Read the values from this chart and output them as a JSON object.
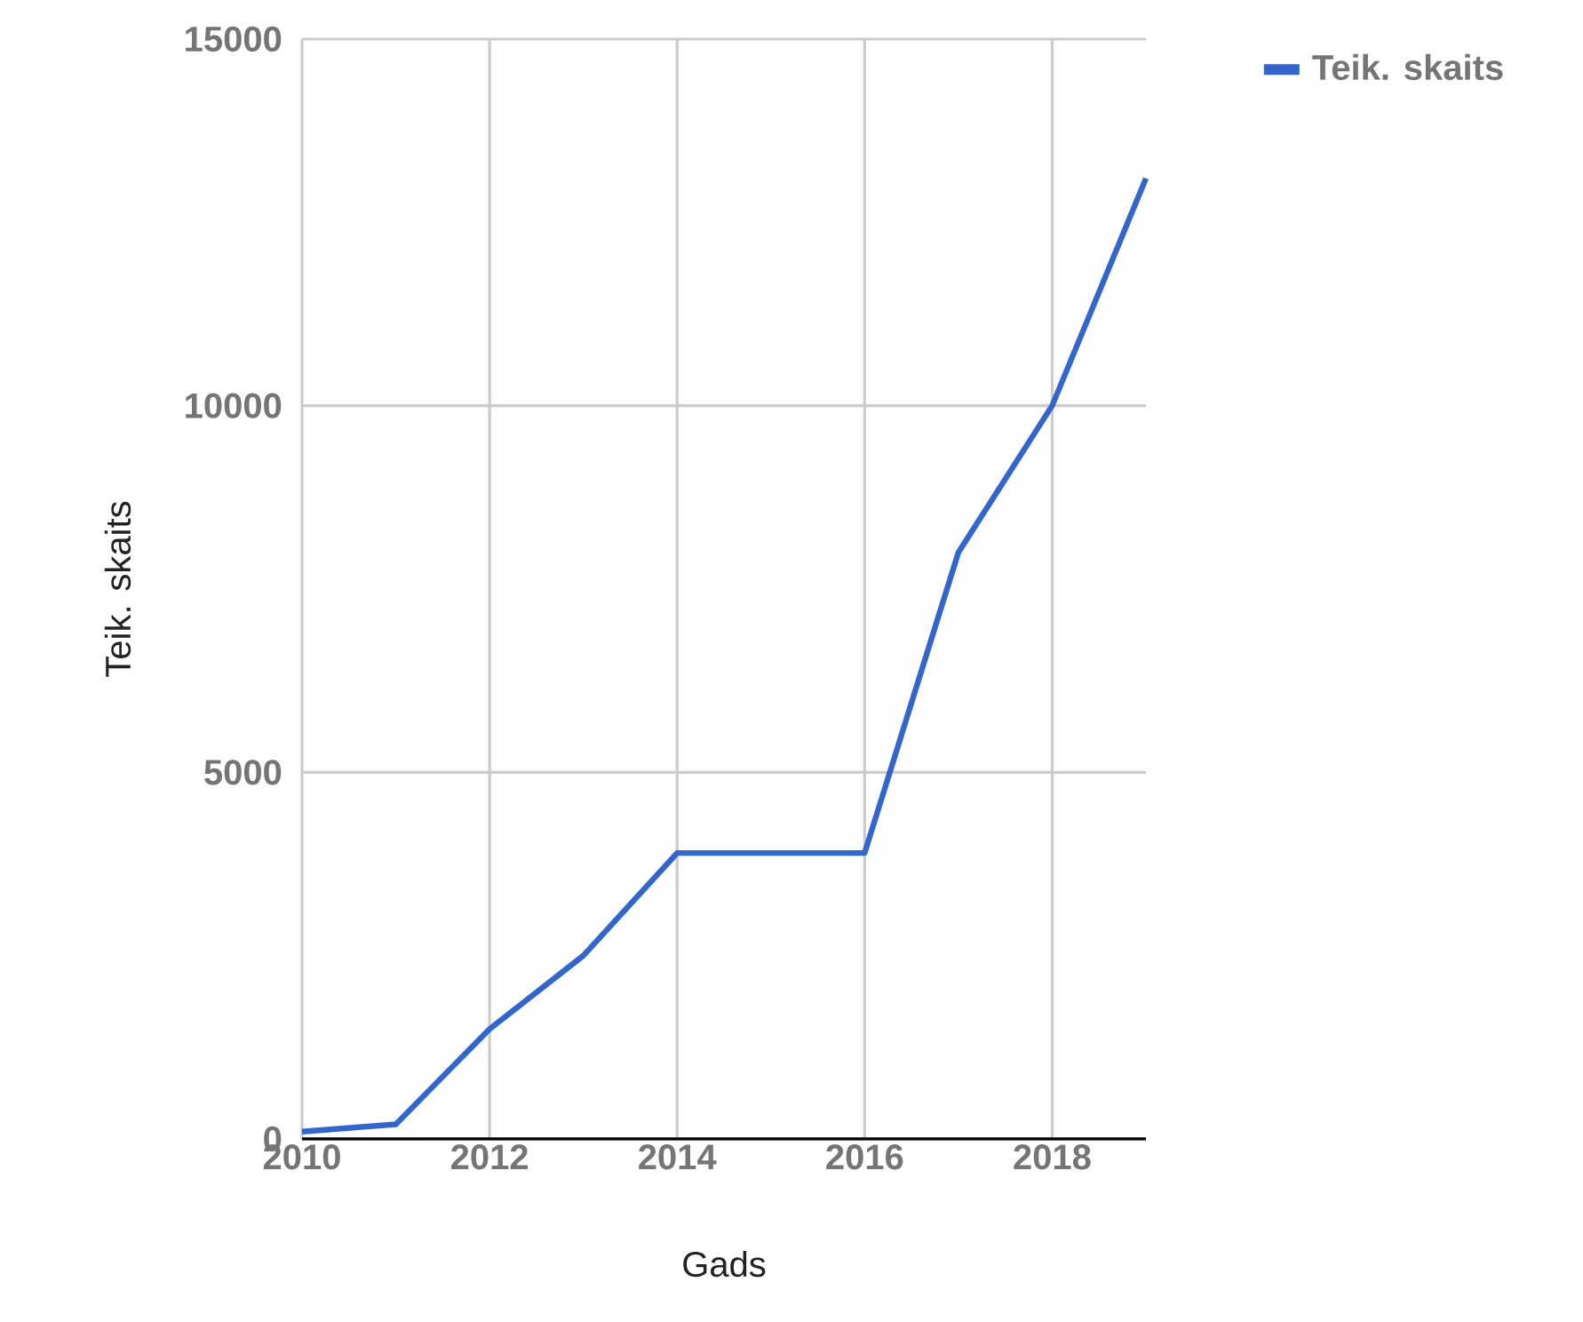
{
  "chart_data": {
    "type": "line",
    "xlabel": "Gads",
    "ylabel": "Teik. skaits",
    "x": [
      2010,
      2011,
      2012,
      2013,
      2014,
      2015,
      2016,
      2017,
      2018,
      2019
    ],
    "series": [
      {
        "name": "Teik. skaits",
        "color": "#3366cc",
        "values": [
          100,
          200,
          1500,
          2500,
          3900,
          3900,
          3900,
          8000,
          10000,
          13100
        ]
      }
    ],
    "xlim": [
      2010,
      2019
    ],
    "xticks": [
      2010,
      2012,
      2014,
      2016,
      2018
    ],
    "ylim": [
      0,
      15000
    ],
    "yticks": [
      0,
      5000,
      10000,
      15000
    ],
    "grid": true,
    "legend": "top right",
    "marker": "none",
    "line_style": "solid"
  }
}
